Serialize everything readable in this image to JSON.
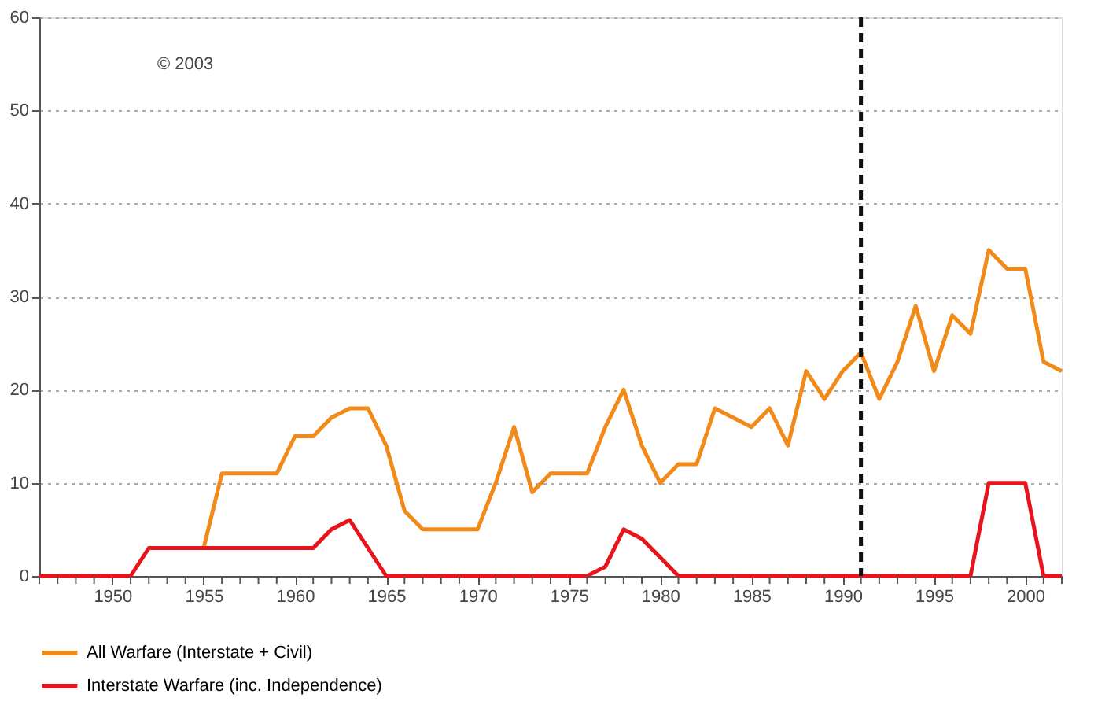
{
  "chart_data": {
    "type": "line",
    "x": [
      1946,
      1947,
      1948,
      1949,
      1950,
      1951,
      1952,
      1953,
      1954,
      1955,
      1956,
      1957,
      1958,
      1959,
      1960,
      1961,
      1962,
      1963,
      1964,
      1965,
      1966,
      1967,
      1968,
      1969,
      1970,
      1971,
      1972,
      1973,
      1974,
      1975,
      1976,
      1977,
      1978,
      1979,
      1980,
      1981,
      1982,
      1983,
      1984,
      1985,
      1986,
      1987,
      1988,
      1989,
      1990,
      1991,
      1992,
      1993,
      1994,
      1995,
      1996,
      1997,
      1998,
      1999,
      2000,
      2001,
      2002
    ],
    "series": [
      {
        "name": "All Warfare (Interstate + Civil)",
        "color": "#f28a1a",
        "values": [
          null,
          null,
          null,
          null,
          null,
          null,
          null,
          null,
          null,
          3,
          11,
          11,
          11,
          11,
          15,
          15,
          17,
          18,
          18,
          14,
          7,
          5,
          5,
          5,
          5,
          10,
          16,
          9,
          11,
          11,
          11,
          16,
          20,
          14,
          10,
          12,
          12,
          18,
          17,
          16,
          18,
          14,
          22,
          19,
          22,
          24,
          19,
          23,
          29,
          22,
          28,
          26,
          35,
          33,
          33,
          23,
          22
        ]
      },
      {
        "name": "Interstate Warfare (inc. Independence)",
        "color": "#e8141c",
        "values": [
          0,
          0,
          0,
          0,
          0,
          0,
          3,
          3,
          3,
          3,
          3,
          3,
          3,
          3,
          3,
          3,
          5,
          6,
          3,
          0,
          0,
          0,
          0,
          0,
          0,
          0,
          0,
          0,
          0,
          0,
          0,
          1,
          5,
          4,
          2,
          0,
          0,
          0,
          0,
          0,
          0,
          0,
          0,
          0,
          0,
          0,
          0,
          0,
          0,
          0,
          0,
          0,
          10,
          10,
          10,
          0,
          0
        ]
      }
    ],
    "xlim": [
      1946,
      2002
    ],
    "xticks": [
      {
        "value": 1946,
        "label": null
      },
      {
        "value": 1947,
        "label": null
      },
      {
        "value": 1948,
        "label": null
      },
      {
        "value": 1949,
        "label": null
      },
      1950,
      {
        "value": 1951,
        "label": null
      },
      {
        "value": 1952,
        "label": null
      },
      {
        "value": 1953,
        "label": null
      },
      {
        "value": 1954,
        "label": null
      },
      1955,
      {
        "value": 1956,
        "label": null
      },
      {
        "value": 1957,
        "label": null
      },
      {
        "value": 1958,
        "label": null
      },
      {
        "value": 1959,
        "label": null
      },
      1960,
      {
        "value": 1961,
        "label": null
      },
      {
        "value": 1962,
        "label": null
      },
      {
        "value": 1963,
        "label": null
      },
      {
        "value": 1964,
        "label": null
      },
      1965,
      {
        "value": 1966,
        "label": null
      },
      {
        "value": 1967,
        "label": null
      },
      {
        "value": 1968,
        "label": null
      },
      {
        "value": 1969,
        "label": null
      },
      1970,
      {
        "value": 1971,
        "label": null
      },
      {
        "value": 1972,
        "label": null
      },
      {
        "value": 1973,
        "label": null
      },
      {
        "value": 1974,
        "label": null
      },
      1975,
      {
        "value": 1976,
        "label": null
      },
      {
        "value": 1977,
        "label": null
      },
      {
        "value": 1978,
        "label": null
      },
      {
        "value": 1979,
        "label": null
      },
      1980,
      {
        "value": 1981,
        "label": null
      },
      {
        "value": 1982,
        "label": null
      },
      {
        "value": 1983,
        "label": null
      },
      {
        "value": 1984,
        "label": null
      },
      1985,
      {
        "value": 1986,
        "label": null
      },
      {
        "value": 1987,
        "label": null
      },
      {
        "value": 1988,
        "label": null
      },
      {
        "value": 1989,
        "label": null
      },
      1990,
      {
        "value": 1991,
        "label": null
      },
      {
        "value": 1992,
        "label": null
      },
      {
        "value": 1993,
        "label": null
      },
      {
        "value": 1994,
        "label": null
      },
      1995,
      {
        "value": 1996,
        "label": null
      },
      {
        "value": 1997,
        "label": null
      },
      {
        "value": 1998,
        "label": null
      },
      {
        "value": 1999,
        "label": null
      },
      2000,
      {
        "value": 2001,
        "label": null
      },
      {
        "value": 2002,
        "label": null
      }
    ],
    "ylim": [
      0,
      60
    ],
    "yticks": [
      0,
      10,
      20,
      30,
      40,
      50,
      60
    ],
    "grid": "y",
    "legend": "bottom",
    "marker": "none",
    "line_style": "solid",
    "ref_lines": [
      {
        "axis": "x",
        "value": 1991,
        "color": "#111111",
        "line_style": "dashed"
      }
    ],
    "annotations": [
      "© 2003"
    ]
  }
}
